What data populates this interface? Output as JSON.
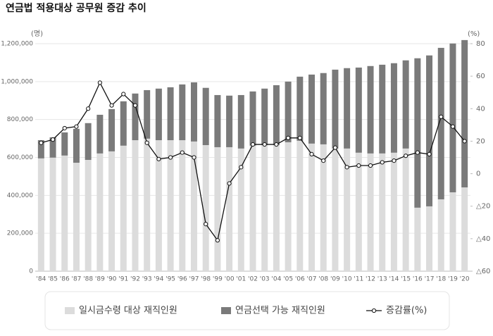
{
  "chart_data": {
    "type": "bar",
    "stacked": true,
    "title": "연금법 적용대상 공무원 증감 추이",
    "ylabel": "(명)",
    "y2label": "(%)",
    "grid": true,
    "legend": "bottom",
    "categories": [
      "'84",
      "'85",
      "'86",
      "'87",
      "'88",
      "'89",
      "'90",
      "'91",
      "'92",
      "'93",
      "'94",
      "'95",
      "'96",
      "'97",
      "'98",
      "'99",
      "'00",
      "'01",
      "'02",
      "'03",
      "'04",
      "'05",
      "'06",
      "'07",
      "'08",
      "'09",
      "'10",
      "'11",
      "'12",
      "'13",
      "'14",
      "'15",
      "'16",
      "'17",
      "'18",
      "'19",
      "'20"
    ],
    "ylim": [
      0,
      1200000
    ],
    "yticks": [
      0,
      {
        "value": 200000,
        "label": "200,000"
      },
      {
        "value": 400000,
        "label": "400,000"
      },
      {
        "value": 600000,
        "label": "600,000"
      },
      {
        "value": 800000,
        "label": "800,000"
      },
      {
        "value": 1000000,
        "label": "1,000,000"
      },
      {
        "value": 1200000,
        "label": "1,200,000"
      }
    ],
    "y2lim": [
      -60,
      80
    ],
    "y2ticks": [
      {
        "value": -60,
        "label": "△60"
      },
      {
        "value": -40,
        "label": "△40"
      },
      {
        "value": -20,
        "label": "△20"
      },
      0,
      20,
      40,
      60,
      80
    ],
    "series": [
      {
        "name": "일시금수령 대상 재직인원",
        "color": "#dcdcdc",
        "values": [
          595000,
          599000,
          610000,
          572000,
          587000,
          621000,
          632000,
          662000,
          691000,
          699000,
          691000,
          691000,
          691000,
          684000,
          665000,
          654000,
          654000,
          647000,
          662000,
          665000,
          665000,
          680000,
          688000,
          673000,
          669000,
          647000,
          647000,
          625000,
          621000,
          621000,
          625000,
          647000,
          335000,
          342000,
          379000,
          416000,
          442000
        ]
      },
      {
        "name": "연금선택 가능 재직인원",
        "color": "#7a7a7a",
        "values": [
          96000,
          107000,
          122000,
          179000,
          194000,
          204000,
          223000,
          234000,
          246000,
          256000,
          272000,
          279000,
          294000,
          312000,
          302000,
          275000,
          272000,
          282000,
          286000,
          298000,
          316000,
          320000,
          338000,
          364000,
          376000,
          416000,
          424000,
          449000,
          461000,
          468000,
          472000,
          465000,
          788000,
          796000,
          799000,
          785000,
          777000
        ]
      },
      {
        "name": "증감률(%)",
        "type": "line",
        "axis": "y2",
        "color": "#111111",
        "values": [
          19,
          21,
          28,
          29,
          40,
          56,
          42,
          49,
          42,
          19,
          9,
          10,
          13,
          10,
          -31,
          -41,
          -6,
          4,
          18,
          18,
          18,
          22,
          22,
          12,
          8,
          16,
          4,
          5,
          5,
          7,
          8,
          11,
          13,
          12,
          35,
          29,
          20
        ]
      }
    ]
  }
}
